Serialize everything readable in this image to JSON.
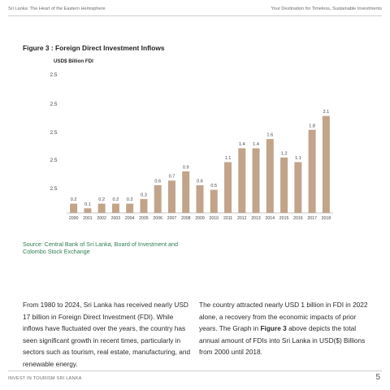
{
  "header": {
    "left": "Sri Lanka: The Heart of the Eastern Hemisphere",
    "right": "Your Destination for Timeless, Sustainable Investments"
  },
  "figure": {
    "title": "Figure 3 : Foreign Direct Investment Inflows"
  },
  "chart_data": {
    "type": "bar",
    "ylabel": "USD$ Billion FDI",
    "y_tick_labels": [
      "2.5",
      "2.5",
      "2.5",
      "2.5",
      "2.5"
    ],
    "ylim": [
      0,
      2.5
    ],
    "grid": false,
    "bar_color": "#c2a48a",
    "categories": [
      "2000",
      "2001",
      "2002",
      "2003",
      "2004",
      "2005",
      "2006",
      "2007",
      "2008",
      "2009",
      "2010",
      "2011",
      "2012",
      "2013",
      "2014",
      "2015",
      "2016",
      "2017",
      "2018"
    ],
    "values": [
      0.2,
      0.1,
      0.2,
      0.2,
      0.2,
      0.3,
      0.6,
      0.7,
      0.9,
      0.6,
      0.5,
      1.1,
      1.4,
      1.4,
      1.6,
      1.2,
      1.1,
      1.8,
      2.1
    ],
    "data_labels": [
      "0.2",
      "0.1",
      "0.2",
      "0.2",
      "0.2",
      "0.3",
      "0.6",
      "0.7",
      "0.9",
      "0.6",
      "0.5",
      "1.1",
      "1.4",
      "1.4",
      "1.6",
      "1.2",
      "1.1",
      "1.8",
      "2.1"
    ]
  },
  "source": "Source: Central Bank of Sri Lanka, Board of Investment and Colombo Stock Exchange",
  "body": {
    "left": "From 1980 to 2024, Sri Lanka has received nearly USD 17 billion in Foreign Direct Investment (FDI). While inflows have fluctuated over the years, the country has seen significant growth in recent times, particularly in sectors such as tourism, real estate, manufacturing, and renewable energy.",
    "right_before": "The country attracted nearly USD 1 billion in FDI in 2022 alone, a recovery from the economic impacts of prior years. The Graph in ",
    "right_bold": "Figure 3",
    "right_after": " above depicts the total annual amount of FDIs into Sri Lanka in USD($) Billions from 2000 until 2018."
  },
  "footer": {
    "left": "INVEST IN TOURISM SRI LANKA",
    "page_number": "5"
  }
}
